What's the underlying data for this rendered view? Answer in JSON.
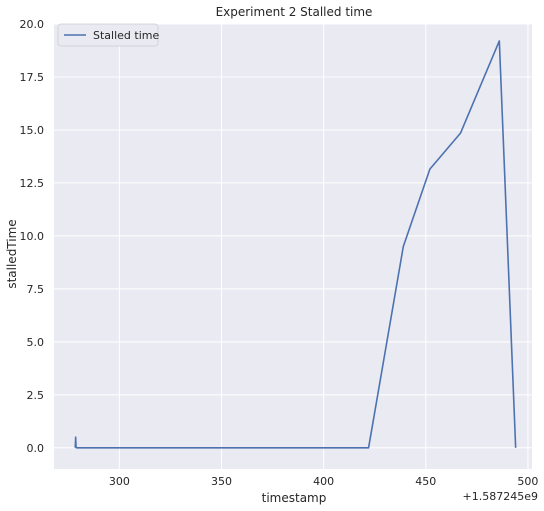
{
  "chart_data": {
    "type": "line",
    "title": "Experiment 2 Stalled time",
    "xlabel": "timestamp",
    "ylabel": "stalledTime",
    "x_offset_label": "+1.587245e9",
    "xlim": [
      268,
      502
    ],
    "ylim": [
      -1,
      20
    ],
    "x_ticks": [
      300,
      350,
      400,
      450,
      500
    ],
    "y_ticks": [
      0.0,
      2.5,
      5.0,
      7.5,
      10.0,
      12.5,
      15.0,
      17.5,
      20.0
    ],
    "x_tick_labels": [
      "300",
      "350",
      "400",
      "450",
      "500"
    ],
    "y_tick_labels": [
      "0.0",
      "2.5",
      "5.0",
      "7.5",
      "10.0",
      "12.5",
      "15.0",
      "17.5",
      "20.0"
    ],
    "grid": true,
    "legend_position": "top-left",
    "series": [
      {
        "name": "Stalled time",
        "color": "#4c72b0",
        "x": [
          278.4,
          278.6,
          278.8,
          279.0,
          422,
          439,
          452,
          467,
          486,
          494
        ],
        "y": [
          0,
          0.5,
          0.05,
          0,
          0,
          9.5,
          13.15,
          14.85,
          19.2,
          0
        ]
      }
    ]
  }
}
